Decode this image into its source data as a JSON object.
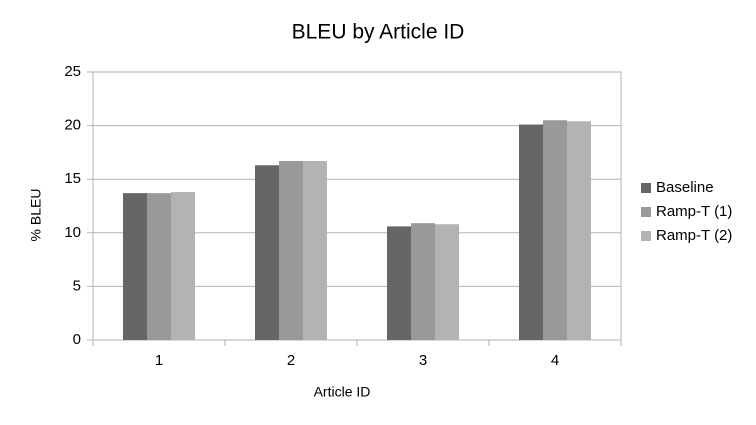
{
  "chart_data": {
    "type": "bar",
    "title": "BLEU by Article ID",
    "x_label": "Article ID",
    "y_label": "% BLEU",
    "categories": [
      "1",
      "2",
      "3",
      "4"
    ],
    "series": [
      {
        "name": "Baseline",
        "color": "#666666",
        "values": [
          13.7,
          16.3,
          10.6,
          20.1
        ]
      },
      {
        "name": "Ramp-T (1)",
        "color": "#999999",
        "values": [
          13.7,
          16.7,
          10.9,
          20.5
        ]
      },
      {
        "name": "Ramp-T (2)",
        "color": "#b3b3b3",
        "values": [
          13.8,
          16.7,
          10.8,
          20.4
        ]
      }
    ],
    "ylim": [
      0,
      25
    ],
    "yticks": [
      0,
      5,
      10,
      15,
      20,
      25
    ],
    "grid": true,
    "legend": "right"
  }
}
